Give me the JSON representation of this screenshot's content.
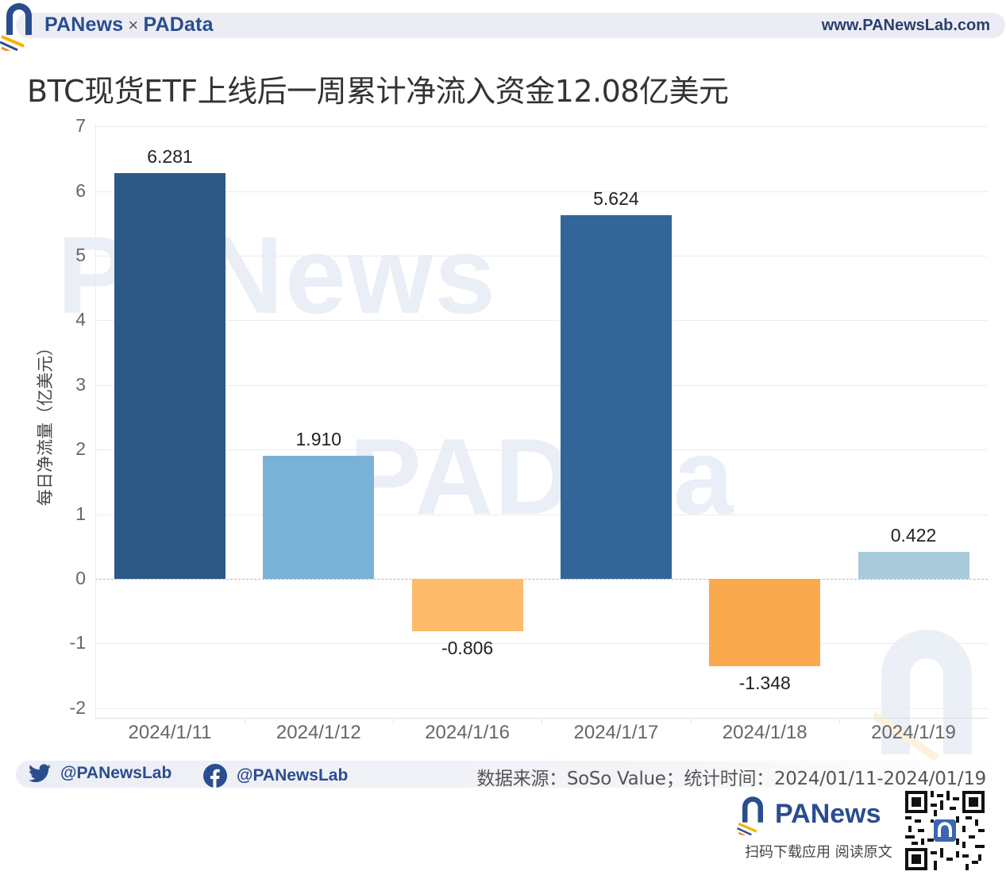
{
  "header": {
    "brand_left": "PANews",
    "brand_sep": "×",
    "brand_right": "PAData",
    "site_url": "www.PANewsLab.com"
  },
  "title": "BTC现货ETF上线后一周累计净流入资金12.08亿美元",
  "chart_data": {
    "type": "bar",
    "title": "BTC现货ETF上线后一周累计净流入资金12.08亿美元",
    "xlabel": "",
    "ylabel": "每日净流量（亿美元）",
    "ylim": [
      -2,
      7
    ],
    "yticks": [
      "7",
      "6",
      "5",
      "4",
      "3",
      "2",
      "1",
      "0",
      "-1",
      "-2"
    ],
    "grid": true,
    "legend": null,
    "categories": [
      "2024/1/11",
      "2024/1/12",
      "2024/1/16",
      "2024/1/17",
      "2024/1/18",
      "2024/1/19"
    ],
    "values": [
      6.281,
      1.91,
      -0.806,
      5.624,
      -1.348,
      0.422
    ],
    "value_labels": [
      "6.281",
      "1.910",
      "-0.806",
      "5.624",
      "-1.348",
      "0.422"
    ],
    "colors": [
      "#2d5986",
      "#7ab1d6",
      "#fdbb6b",
      "#326698",
      "#fba94d",
      "#a8cadb"
    ]
  },
  "watermarks": [
    "PANews",
    "PAData"
  ],
  "footer": {
    "twitter_handle": "@PANewsLab",
    "facebook_handle": "@PANewsLab",
    "source": "数据来源：SoSo Value；统计时间：2024/01/11-2024/01/19",
    "app_brand": "PANews",
    "cta": "扫码下载应用  阅读原文"
  },
  "colors": {
    "brand_blue": "#2a4d8f",
    "brand_orange": "#f08c2c"
  }
}
